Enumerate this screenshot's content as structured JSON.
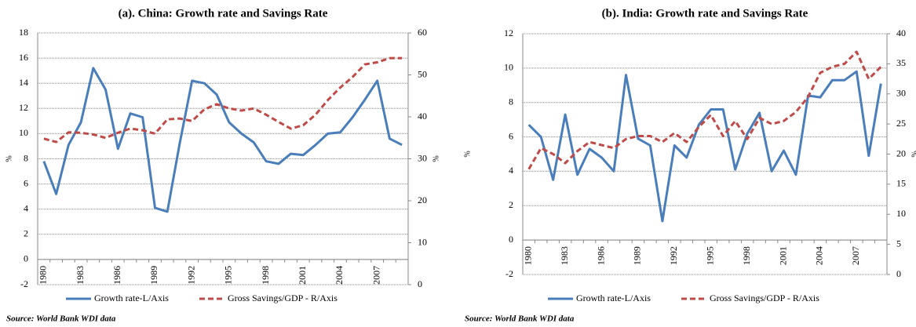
{
  "chart_data": [
    {
      "type": "line",
      "title": "(a).  China: Growth rate and Savings Rate",
      "categories": [
        "1980",
        null,
        null,
        "1983",
        null,
        null,
        "1986",
        null,
        null,
        "1989",
        null,
        null,
        "1992",
        null,
        null,
        "1995",
        null,
        null,
        "1998",
        null,
        null,
        "2001",
        null,
        null,
        "2004",
        null,
        null,
        "2007",
        null,
        null
      ],
      "y_label": "%",
      "y2_label": "%",
      "ylim": [
        -2,
        18
      ],
      "yticks": [
        -2,
        0,
        2,
        4,
        6,
        8,
        10,
        12,
        14,
        16,
        18
      ],
      "y2lim": [
        0,
        60
      ],
      "y2ticks": [
        0,
        10,
        20,
        30,
        40,
        50,
        60
      ],
      "grid": true,
      "series": [
        {
          "name": "Growth rate-L/Axis",
          "color": "#4a7ebb",
          "values": [
            7.8,
            5.2,
            9.1,
            10.9,
            15.2,
            13.5,
            8.8,
            11.6,
            11.3,
            4.1,
            3.8,
            9.2,
            14.2,
            14.0,
            13.1,
            10.9,
            10.0,
            9.3,
            7.8,
            7.6,
            8.4,
            8.3,
            9.1,
            10.0,
            10.1,
            11.3,
            12.7,
            14.2,
            9.6,
            9.1
          ]
        },
        {
          "name": "Gross Savings/GDP - R/Axis",
          "color": "#be4b48",
          "axis": "y2",
          "values": [
            34.8,
            34,
            36.3,
            36.2,
            35.8,
            35,
            36.2,
            37.2,
            36.8,
            36,
            39.4,
            39.6,
            39,
            41.8,
            43,
            42,
            41.5,
            42,
            40.5,
            38.8,
            37.2,
            38,
            40.5,
            44,
            47,
            49.5,
            52.5,
            53,
            54,
            54
          ]
        }
      ],
      "note": "Source: World Bank WDI data"
    },
    {
      "type": "line",
      "title": "(b).  India: Growth rate and Savings Rate",
      "categories": [
        "1980",
        null,
        null,
        "1983",
        null,
        null,
        "1986",
        null,
        null,
        "1989",
        null,
        null,
        "1992",
        null,
        null,
        "1995",
        null,
        null,
        "1998",
        null,
        null,
        "2001",
        null,
        null,
        "2004",
        null,
        null,
        "2007",
        null,
        null
      ],
      "y_label": "%",
      "y2_label": "%",
      "ylim": [
        -2,
        12
      ],
      "yticks": [
        -2,
        0,
        2,
        4,
        6,
        8,
        10,
        12
      ],
      "y2lim": [
        0,
        40
      ],
      "y2ticks": [
        0,
        5,
        10,
        15,
        20,
        25,
        30,
        35,
        40
      ],
      "grid": true,
      "series": [
        {
          "name": "Growth rate-L/Axis",
          "color": "#4a7ebb",
          "values": [
            6.7,
            6.0,
            3.5,
            7.3,
            3.8,
            5.3,
            4.8,
            4.0,
            9.6,
            5.9,
            5.5,
            1.1,
            5.5,
            4.8,
            6.7,
            7.6,
            7.6,
            4.1,
            6.2,
            7.4,
            4.0,
            5.2,
            3.8,
            8.4,
            8.3,
            9.3,
            9.3,
            9.8,
            4.9,
            9.1
          ]
        },
        {
          "name": "Gross Savings/GDP - R/Axis",
          "color": "#be4b48",
          "axis": "y2",
          "values": [
            17.5,
            21,
            20,
            18.5,
            20.5,
            22,
            21.5,
            21,
            22.5,
            23,
            23,
            22,
            23.5,
            22,
            24.5,
            26.5,
            23,
            25.5,
            22.5,
            26,
            25,
            25.5,
            27,
            29.5,
            33.5,
            34.5,
            35,
            37,
            32.5,
            34.5
          ]
        }
      ],
      "note": "Source: World Bank WDI data"
    }
  ]
}
